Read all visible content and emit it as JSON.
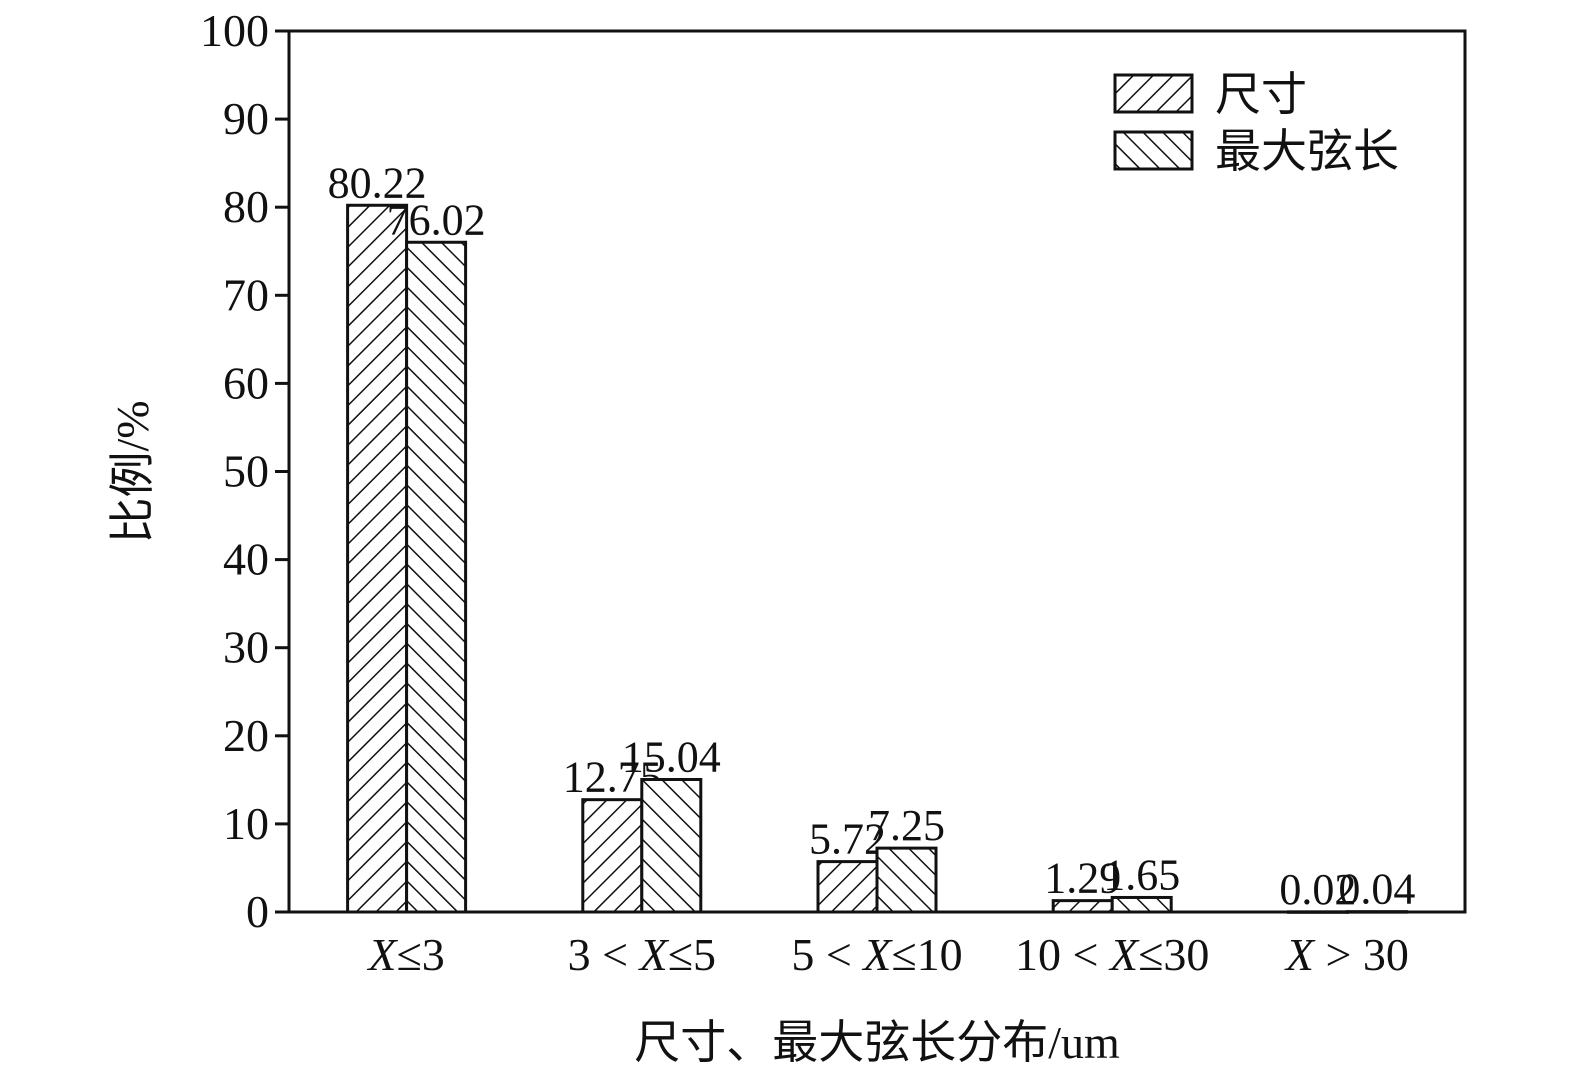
{
  "chart_data": {
    "type": "bar",
    "title": "",
    "xlabel": "尺寸、最大弦长分布/um",
    "ylabel": "比例/%",
    "ylim": [
      0,
      100
    ],
    "yticks": [
      0,
      10,
      20,
      30,
      40,
      50,
      60,
      70,
      80,
      90,
      100
    ],
    "categories": [
      "X≤3",
      "3 < X≤5",
      "5 < X≤10",
      "10 < X≤30",
      "X > 30"
    ],
    "series": [
      {
        "name": "尺寸",
        "values": [
          80.22,
          12.75,
          5.72,
          1.29,
          0.02
        ],
        "labels": [
          "80.22",
          "12.75",
          "5.72",
          "1.29",
          "0.02"
        ],
        "hatch": "forward-diagonal"
      },
      {
        "name": "最大弦长",
        "values": [
          76.02,
          15.04,
          7.25,
          1.65,
          0.04
        ],
        "labels": [
          "76.02",
          "15.04",
          "7.25",
          "1.65",
          "0.04"
        ],
        "hatch": "backward-diagonal"
      }
    ],
    "grid": false,
    "legend": "top-right",
    "colors": {
      "bar_fill": "#ffffff",
      "stroke": "#111111"
    }
  }
}
